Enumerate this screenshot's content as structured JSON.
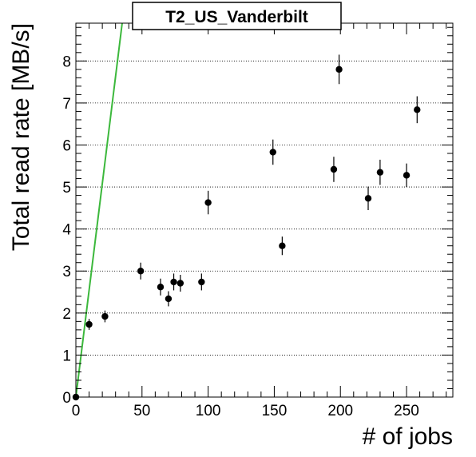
{
  "chart_data": {
    "type": "scatter",
    "title": "T2_US_Vanderbilt",
    "xlabel": "# of jobs",
    "ylabel": "Total read rate [MB/s]",
    "xlim": [
      0,
      285
    ],
    "ylim": [
      0,
      8.9
    ],
    "x_ticks": [
      0,
      50,
      100,
      150,
      200,
      250
    ],
    "y_ticks": [
      0,
      1,
      2,
      3,
      4,
      5,
      6,
      7,
      8
    ],
    "grid": "horizontal dotted at major y ticks",
    "points": [
      {
        "x": 0,
        "y": 0.0,
        "err": 0.0
      },
      {
        "x": 10,
        "y": 1.73,
        "err": 0.13
      },
      {
        "x": 22,
        "y": 1.92,
        "err": 0.14
      },
      {
        "x": 49,
        "y": 3.0,
        "err": 0.2
      },
      {
        "x": 64,
        "y": 2.62,
        "err": 0.2
      },
      {
        "x": 70,
        "y": 2.34,
        "err": 0.18
      },
      {
        "x": 74,
        "y": 2.74,
        "err": 0.2
      },
      {
        "x": 79,
        "y": 2.71,
        "err": 0.2
      },
      {
        "x": 95,
        "y": 2.74,
        "err": 0.2
      },
      {
        "x": 100,
        "y": 4.63,
        "err": 0.28
      },
      {
        "x": 149,
        "y": 5.83,
        "err": 0.3
      },
      {
        "x": 156,
        "y": 3.6,
        "err": 0.22
      },
      {
        "x": 195,
        "y": 5.42,
        "err": 0.3
      },
      {
        "x": 199,
        "y": 7.8,
        "err": 0.35
      },
      {
        "x": 221,
        "y": 4.73,
        "err": 0.28
      },
      {
        "x": 230,
        "y": 5.35,
        "err": 0.3
      },
      {
        "x": 250,
        "y": 5.28,
        "err": 0.28
      },
      {
        "x": 258,
        "y": 6.84,
        "err": 0.32
      }
    ],
    "reference_line": {
      "x": [
        0,
        35
      ],
      "y": [
        0,
        8.9
      ],
      "color": "#3cb83c"
    },
    "marker_color": "#000000"
  }
}
